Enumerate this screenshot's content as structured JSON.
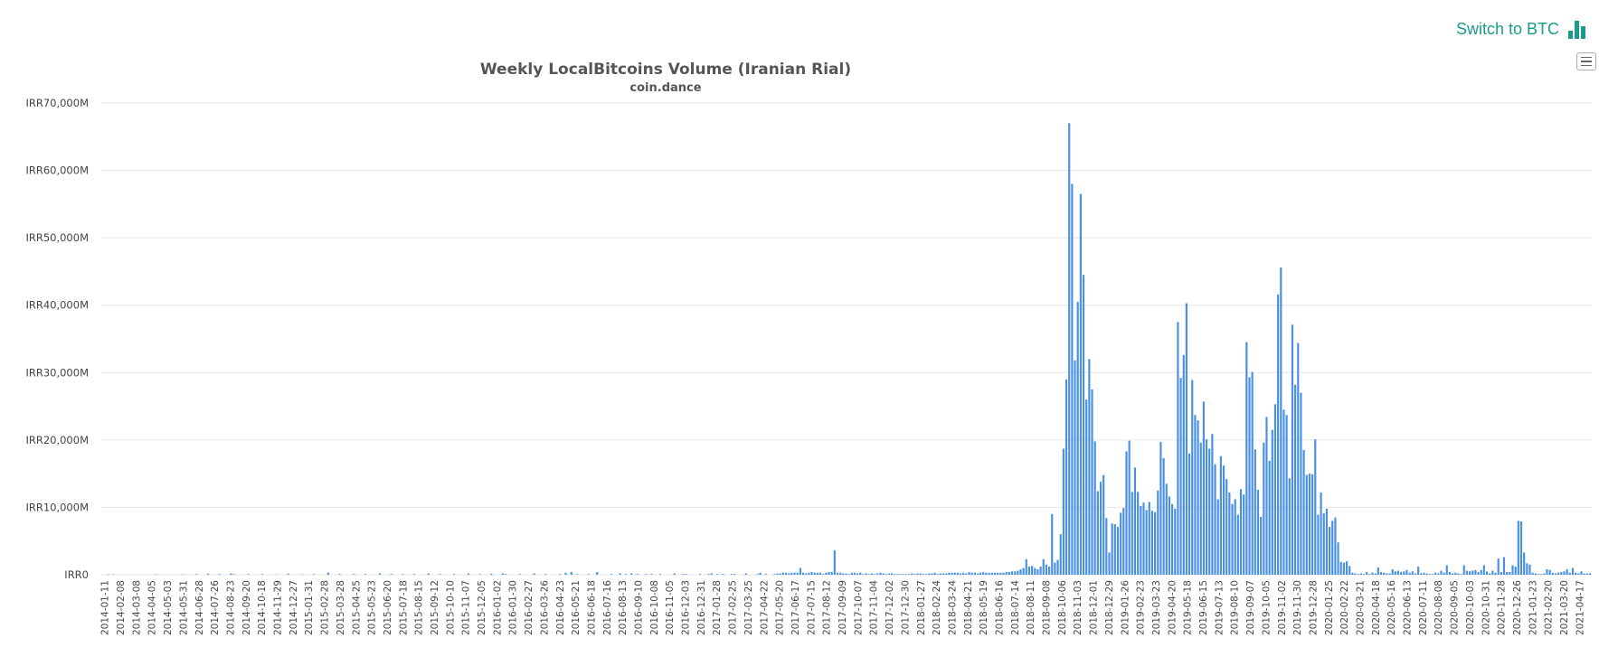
{
  "header": {
    "switch_label": "Switch to BTC",
    "switch_icon": "bar-chart-icon",
    "accent_color": "#1a9c8c"
  },
  "chart_data": {
    "type": "bar",
    "title": "Weekly LocalBitcoins Volume (Iranian Rial)",
    "subtitle": "coin.dance",
    "xlabel": "",
    "ylabel": "",
    "bar_color": "#4a90e2",
    "ylim": [
      0,
      70000
    ],
    "y_unit": "IRR millions",
    "y_ticks": [
      0,
      10000,
      20000,
      30000,
      40000,
      50000,
      60000,
      70000
    ],
    "y_tick_labels": [
      "IRR0",
      "IRR10,000M",
      "IRR20,000M",
      "IRR30,000M",
      "IRR40,000M",
      "IRR50,000M",
      "IRR60,000M",
      "IRR70,000M"
    ],
    "x_tick_labels": [
      "2014-01-11",
      "2014-02-08",
      "2014-03-08",
      "2014-04-05",
      "2014-05-03",
      "2014-05-31",
      "2014-06-28",
      "2014-07-26",
      "2014-08-23",
      "2014-09-20",
      "2014-10-18",
      "2014-11-29",
      "2014-12-27",
      "2015-01-31",
      "2015-02-28",
      "2015-03-28",
      "2015-04-25",
      "2015-05-23",
      "2015-06-20",
      "2015-07-18",
      "2015-08-15",
      "2015-09-12",
      "2015-10-10",
      "2015-11-07",
      "2015-12-05",
      "2016-01-02",
      "2016-01-30",
      "2016-02-27",
      "2016-03-26",
      "2016-04-23",
      "2016-05-21",
      "2016-06-18",
      "2016-07-16",
      "2016-08-13",
      "2016-09-10",
      "2016-10-08",
      "2016-11-05",
      "2016-12-03",
      "2016-12-31",
      "2017-01-28",
      "2017-02-25",
      "2017-03-25",
      "2017-04-22",
      "2017-05-20",
      "2017-06-17",
      "2017-07-15",
      "2017-08-12",
      "2017-09-09",
      "2017-10-07",
      "2017-11-04",
      "2017-12-02",
      "2017-12-30",
      "2018-01-27",
      "2018-02-24",
      "2018-03-24",
      "2018-04-21",
      "2018-05-19",
      "2018-06-16",
      "2018-07-14",
      "2018-08-11",
      "2018-09-08",
      "2018-10-06",
      "2018-11-03",
      "2018-12-01",
      "2018-12-29",
      "2019-01-26",
      "2019-02-23",
      "2019-03-23",
      "2019-04-20",
      "2019-05-18",
      "2019-06-15",
      "2019-07-13",
      "2019-08-10",
      "2019-09-07",
      "2019-10-05",
      "2019-11-02",
      "2019-11-30",
      "2019-12-28",
      "2020-01-25",
      "2020-02-22",
      "2020-03-21",
      "2020-04-18",
      "2020-05-16",
      "2020-06-13",
      "2020-07-11",
      "2020-08-08",
      "2020-09-05",
      "2020-10-03",
      "2020-10-31",
      "2020-11-28",
      "2020-12-26",
      "2021-01-23",
      "2021-02-20",
      "2021-03-20",
      "2021-04-17"
    ],
    "values": [
      0,
      0,
      0,
      0,
      0,
      0,
      50,
      0,
      0,
      60,
      0,
      0,
      0,
      0,
      0,
      0,
      0,
      0,
      0,
      0,
      0,
      0,
      0,
      50,
      0,
      0,
      0,
      0,
      0,
      0,
      0,
      0,
      0,
      0,
      0,
      0,
      0,
      0,
      0,
      0,
      0,
      0,
      0,
      0,
      0,
      0,
      50,
      0,
      0,
      0,
      0,
      150,
      0,
      0,
      0,
      0,
      200,
      0,
      0,
      0,
      0,
      0,
      200,
      0,
      0,
      0,
      0,
      0,
      0,
      0,
      50,
      0,
      0,
      0,
      0,
      150,
      0,
      0,
      0,
      0,
      0,
      50,
      0,
      0,
      0,
      0,
      0,
      0,
      0,
      50,
      0,
      0,
      0,
      0,
      0,
      0,
      0,
      0,
      0,
      0,
      50,
      0,
      0,
      0,
      0,
      100,
      0,
      0,
      0,
      100,
      0,
      0,
      0,
      0,
      0,
      0,
      0,
      400,
      0,
      0,
      0,
      0,
      0,
      0,
      0,
      0,
      100,
      0,
      0,
      0,
      0,
      0,
      0,
      100,
      0,
      100,
      0,
      0,
      0,
      0,
      0,
      0,
      0,
      0,
      0,
      100,
      0,
      100,
      0,
      0,
      0,
      0,
      0,
      100,
      0,
      300,
      0,
      100,
      0,
      0,
      0,
      0,
      0,
      0,
      0,
      100,
      0,
      0,
      0,
      100,
      0,
      0,
      0,
      0,
      0,
      200,
      0,
      0,
      0,
      0,
      0,
      0,
      100,
      0,
      0,
      0,
      0,
      0,
      100,
      0,
      0,
      0,
      100,
      0,
      0,
      0,
      0,
      0,
      0,
      0,
      100,
      0,
      0,
      0,
      0,
      0,
      100,
      0,
      0,
      0,
      0,
      0,
      0,
      100,
      0,
      100,
      0,
      0,
      0,
      0,
      0,
      0,
      0,
      0,
      0,
      0,
      150,
      0,
      0,
      0,
      0,
      0,
      150,
      0,
      0,
      0,
      0,
      0,
      0,
      0,
      100,
      0,
      0,
      0,
      100,
      0,
      0,
      0,
      100,
      0,
      0,
      0,
      0,
      100,
      0,
      100,
      0,
      0,
      0,
      0,
      0,
      0,
      0,
      100,
      0,
      0,
      0,
      0,
      0,
      0,
      150,
      0,
      0,
      0,
      100,
      0,
      100,
      0,
      100,
      0,
      0,
      0,
      0,
      0,
      0,
      50,
      0,
      0,
      0,
      0,
      0,
      0,
      0,
      100,
      0,
      0,
      0,
      0,
      0,
      0,
      0,
      0,
      0,
      0,
      0,
      100,
      0,
      0,
      0,
      0,
      0,
      0,
      100,
      0,
      0,
      0,
      0,
      0,
      0,
      150,
      0,
      0,
      0,
      0,
      0,
      100,
      0,
      0,
      0,
      0,
      0,
      0,
      0,
      0,
      0,
      0,
      0,
      0,
      0,
      100,
      0,
      0,
      0,
      0,
      0,
      0,
      0,
      100,
      0,
      0,
      0,
      0,
      0,
      0,
      0,
      100,
      0,
      0,
      0,
      0,
      0,
      0,
      100,
      0,
      0,
      0,
      0,
      0,
      0,
      0,
      0,
      0,
      0,
      100,
      0,
      0,
      0,
      0,
      0,
      0,
      0,
      100,
      0,
      0,
      0,
      0,
      0,
      0,
      0,
      0,
      0,
      0,
      0,
      0,
      0,
      0,
      100,
      0,
      0,
      0,
      0,
      0,
      0,
      100,
      0,
      100,
      0,
      0,
      0,
      0,
      0,
      0,
      0,
      0,
      0,
      100,
      0,
      0,
      0,
      0,
      0,
      0,
      200,
      0,
      0,
      0,
      0,
      0,
      0,
      0,
      0,
      100,
      0,
      0,
      0,
      0,
      0,
      0,
      0,
      0,
      0,
      0,
      0,
      100,
      0,
      0,
      0,
      0,
      0,
      200,
      0,
      0,
      0,
      0,
      0,
      0,
      0,
      0,
      0,
      0,
      100,
      0,
      0,
      0,
      0,
      0,
      0,
      100,
      0,
      0,
      0,
      0,
      0,
      0,
      0,
      0,
      0,
      0,
      100,
      0,
      0,
      0,
      0,
      200,
      0,
      0,
      0,
      0,
      0,
      0,
      0,
      0,
      0,
      0,
      0,
      0,
      0,
      0,
      0,
      0,
      0,
      0,
      0,
      0,
      100,
      0,
      0,
      0,
      0,
      0,
      0,
      0,
      0,
      0,
      0,
      100,
      0,
      0,
      0,
      0,
      0,
      0,
      0,
      0,
      0,
      0,
      100,
      0,
      0,
      0,
      0,
      0,
      0,
      0,
      0,
      0,
      0,
      100,
      0,
      0,
      0,
      0,
      0,
      0,
      0,
      0,
      0,
      0,
      200,
      0,
      0,
      0,
      0,
      0,
      0,
      0,
      0,
      0,
      0,
      100,
      0,
      0,
      0,
      0,
      0,
      0,
      0,
      0,
      0,
      0,
      0,
      0,
      0,
      0,
      0,
      0,
      0,
      0,
      0,
      0,
      0,
      100,
      0,
      0,
      0,
      0,
      0,
      0,
      0,
      0,
      0,
      0,
      200,
      0,
      0,
      0,
      0,
      0,
      0,
      0,
      0,
      0,
      0,
      100,
      0,
      0,
      0,
      0,
      0,
      0,
      0,
      0,
      0,
      0,
      0,
      0,
      0,
      0,
      0,
      0,
      0,
      0,
      0,
      0,
      0,
      0,
      0,
      0,
      0,
      0,
      0,
      0,
      0,
      0,
      0,
      0,
      0,
      0,
      0,
      0,
      0,
      0,
      0,
      0,
      0,
      0,
      0,
      0,
      0,
      0,
      0,
      0,
      0,
      0,
      0,
      0,
      0,
      0,
      0,
      0,
      0,
      0,
      0,
      0,
      0,
      0,
      0,
      0,
      0,
      0,
      0,
      0,
      0,
      0,
      0,
      0,
      0,
      0,
      0,
      0,
      0,
      0,
      0,
      0,
      0,
      0,
      0,
      0,
      0,
      0,
      0,
      0
    ],
    "weekly_values": [
      0,
      0,
      50,
      0,
      50,
      0,
      0,
      0,
      0,
      0,
      0,
      0,
      0,
      0,
      0,
      0,
      0,
      0,
      0,
      50,
      0,
      0,
      0,
      0,
      0,
      0,
      0,
      0,
      50,
      0,
      0,
      0,
      0,
      100,
      0,
      0,
      0,
      150,
      0,
      0,
      0,
      100,
      0,
      0,
      0,
      200,
      100,
      0,
      0,
      0,
      0,
      100,
      0,
      0,
      0,
      0,
      100,
      0,
      0,
      0,
      0,
      50,
      0,
      0,
      0,
      150,
      0,
      0,
      0,
      0,
      50,
      0,
      0,
      0,
      100,
      0,
      0,
      0,
      0,
      300,
      0,
      0,
      0,
      100,
      0,
      0,
      0,
      0,
      100,
      0,
      0,
      0,
      100,
      0,
      0,
      0,
      0,
      200,
      0,
      0,
      0,
      100,
      0,
      0,
      0,
      100,
      0,
      0,
      0,
      100,
      0,
      0,
      0,
      0,
      200,
      0,
      0,
      0,
      100,
      0,
      0,
      0,
      0,
      100,
      0,
      0,
      0,
      0,
      200,
      0,
      0,
      0,
      100,
      0,
      0,
      0,
      150,
      0,
      0,
      0,
      200,
      100,
      0,
      0,
      0,
      0,
      100,
      0,
      0,
      0,
      0,
      200,
      0,
      0,
      0,
      100,
      0,
      0,
      0,
      0,
      100,
      0,
      300,
      0,
      400,
      0,
      100,
      0,
      0,
      0,
      100,
      0,
      0,
      400,
      0,
      0,
      0,
      0,
      100,
      0,
      0,
      200,
      0,
      100,
      0,
      200,
      0,
      100,
      0,
      0,
      100,
      0,
      100,
      0,
      0,
      100,
      0,
      0,
      0,
      0,
      200,
      0,
      0,
      100,
      100,
      0,
      0,
      0,
      0,
      100,
      0,
      0,
      100,
      200,
      0,
      100,
      0,
      100,
      0,
      0,
      100,
      100,
      0,
      0,
      0,
      200,
      0,
      0,
      0,
      100,
      300,
      0,
      100,
      0,
      0,
      100,
      200,
      200,
      300,
      300,
      200,
      300,
      300,
      300,
      1000,
      300,
      200,
      300,
      400,
      300,
      300,
      300,
      100,
      300,
      400,
      400,
      3600,
      300,
      300,
      200,
      200,
      100,
      300,
      300,
      200,
      300,
      100,
      200,
      100,
      200,
      100,
      200,
      300,
      200,
      100,
      200,
      200,
      100,
      100,
      100,
      100,
      100,
      100,
      200,
      100,
      200,
      200,
      100,
      100,
      200,
      200,
      300,
      100,
      200,
      200,
      200,
      300,
      300,
      300,
      300,
      200,
      300,
      200,
      400,
      300,
      300,
      200,
      300,
      400,
      300,
      300,
      300,
      300,
      300,
      300,
      300,
      400,
      400,
      500,
      500,
      600,
      800,
      1000,
      2300,
      1200,
      1300,
      1000,
      800,
      1200,
      2300,
      1500,
      1200,
      9000,
      1800,
      2200,
      6000,
      18700,
      29000,
      67000,
      58000,
      31800,
      40500,
      56500,
      44500,
      26000,
      32000,
      27500,
      19800,
      12400,
      13800,
      14800,
      8400,
      3300,
      7600,
      7500,
      7100,
      9200,
      9900,
      18300,
      19900,
      12300,
      15900,
      12300,
      10200,
      10700,
      9600,
      10800,
      9500,
      9300,
      12500,
      19700,
      17300,
      13500,
      11600,
      10500,
      9800,
      37500,
      29200,
      32600,
      40300,
      18000,
      28900,
      23700,
      22900,
      19600,
      25700,
      20100,
      18700,
      20900,
      16400,
      11200,
      17600,
      16200,
      14200,
      12200,
      10500,
      11200,
      8900,
      12700,
      11900,
      34500,
      29300,
      30100,
      18600,
      12600,
      8600,
      19600,
      23400,
      16900,
      21500,
      25300,
      41600,
      45600,
      24500,
      23700,
      14300,
      37100,
      28200,
      34400,
      27000,
      18500,
      14800,
      15000,
      14900,
      20100,
      8900,
      12200,
      9100,
      9800,
      7100,
      8000,
      8500,
      4800,
      1900,
      1800,
      2000,
      1300,
      300,
      200,
      100,
      200,
      100,
      400,
      100,
      300,
      200,
      1100,
      400,
      300,
      200,
      200,
      800,
      500,
      600,
      400,
      500,
      700,
      300,
      500,
      200,
      1200,
      200,
      300,
      200,
      100,
      100,
      300,
      200,
      600,
      300,
      1400,
      400,
      200,
      300,
      200,
      100,
      1400,
      600,
      500,
      600,
      700,
      400,
      700,
      1400,
      500,
      200,
      600,
      300,
      2400,
      400,
      2600,
      400,
      400,
      1400,
      1200,
      8000,
      7900,
      3300,
      1700,
      1500,
      300,
      200,
      100,
      100,
      200,
      800,
      700,
      300,
      200,
      300,
      400,
      500,
      800,
      300,
      1000,
      300,
      200,
      500,
      200,
      200,
      200
    ]
  }
}
